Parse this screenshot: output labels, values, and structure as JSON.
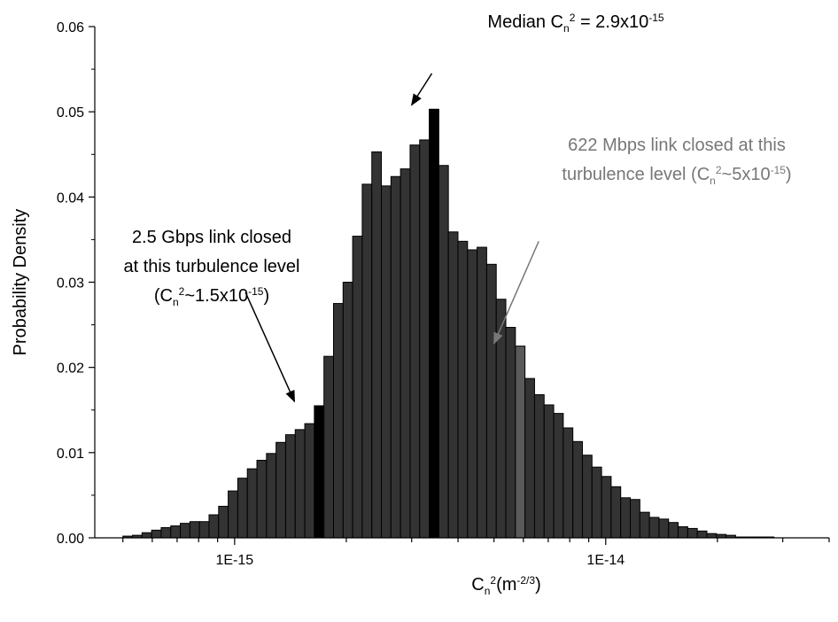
{
  "chart_data": {
    "type": "bar",
    "xscale": "log",
    "xlim": [
      4.2e-16,
      4e-14
    ],
    "ylim": [
      0,
      0.06
    ],
    "yticks": [
      0,
      0.01,
      0.02,
      0.03,
      0.04,
      0.05,
      0.06
    ],
    "ytick_labels": [
      "0.00",
      "0.01",
      "0.02",
      "0.03",
      "0.04",
      "0.05",
      "0.06"
    ],
    "xtick_labels": [
      {
        "value": 1e-15,
        "label": "1E-15"
      },
      {
        "value": 1e-14,
        "label": "1E-14"
      }
    ],
    "ylabel": "Probability Density",
    "xlabel": {
      "base": "C",
      "sub": "n",
      "sup": "2",
      "paren": "(m",
      "paren_sup": "-2/3",
      "paren_close": ")"
    },
    "bins": {
      "start": 5e-16,
      "ratio": 1.0612,
      "values": [
        0.0002,
        0.0003,
        0.0006,
        0.0009,
        0.0012,
        0.0014,
        0.0017,
        0.0019,
        0.0019,
        0.0027,
        0.0037,
        0.0055,
        0.007,
        0.0081,
        0.0091,
        0.0099,
        0.0112,
        0.0121,
        0.0127,
        0.0134,
        0.0155,
        0.0213,
        0.0275,
        0.03,
        0.0354,
        0.0415,
        0.0453,
        0.0413,
        0.0424,
        0.0433,
        0.0461,
        0.0467,
        0.0503,
        0.0437,
        0.0359,
        0.0348,
        0.0338,
        0.0341,
        0.0321,
        0.028,
        0.0247,
        0.0225,
        0.0187,
        0.0168,
        0.0156,
        0.0146,
        0.0129,
        0.0113,
        0.0097,
        0.0083,
        0.0072,
        0.006,
        0.0047,
        0.0045,
        0.003,
        0.0024,
        0.0022,
        0.0018,
        0.0013,
        0.0011,
        0.0008,
        0.0005,
        0.0004,
        0.0003,
        0.0001,
        0.0001,
        0.0001,
        0.0001,
        0.0,
        0.0,
        0.0,
        0.0
      ],
      "highlights": [
        {
          "index": 20,
          "color": "#000000"
        },
        {
          "index": 32,
          "color": "#000000"
        },
        {
          "index": 41,
          "color": "#5a5a5a"
        }
      ]
    },
    "colors": {
      "bar": "#333333",
      "edge": "#000000"
    },
    "annotations": [
      {
        "name": "median",
        "color": "#000000",
        "lines": [
          [
            {
              "t": "Median C"
            },
            {
              "t": "n",
              "s": "sub"
            },
            {
              "t": "2",
              "s": "sup"
            },
            {
              "t": " = 2.9x10"
            },
            {
              "t": "-15",
              "s": "sup"
            }
          ]
        ],
        "align": "middle",
        "arrow": {
          "from": [
            3.4e-15,
            0.0545
          ],
          "to": [
            3e-15,
            0.0508
          ]
        }
      },
      {
        "name": "622-mbps",
        "color": "#777777",
        "lines": [
          [
            {
              "t": "622 Mbps link closed at this"
            }
          ],
          [
            {
              "t": "turbulence level (C"
            },
            {
              "t": "n",
              "s": "sub"
            },
            {
              "t": "2",
              "s": "sup"
            },
            {
              "t": "~5x10"
            },
            {
              "t": "-15",
              "s": "sup"
            },
            {
              "t": ")"
            }
          ]
        ],
        "align": "middle",
        "arrow": {
          "from": [
            6.6e-15,
            0.0348
          ],
          "to": [
            5e-15,
            0.0228
          ]
        }
      },
      {
        "name": "2-5-gbps",
        "color": "#000000",
        "lines": [
          [
            {
              "t": "2.5 Gbps link closed"
            }
          ],
          [
            {
              "t": "at this turbulence level"
            }
          ],
          [
            {
              "t": "(C"
            },
            {
              "t": "n",
              "s": "sub"
            },
            {
              "t": "2",
              "s": "sup"
            },
            {
              "t": "~1.5x10"
            },
            {
              "t": "-15",
              "s": "sup"
            },
            {
              "t": ")"
            }
          ]
        ],
        "align": "middle",
        "arrow": {
          "from": [
            1.07e-15,
            0.0288
          ],
          "to": [
            1.45e-15,
            0.016
          ]
        }
      }
    ]
  }
}
